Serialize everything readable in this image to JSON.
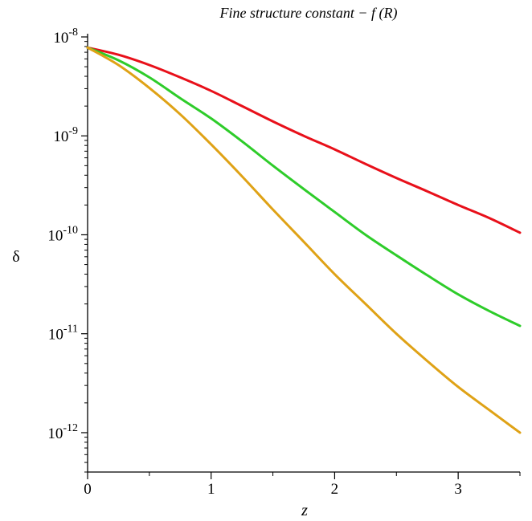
{
  "chart_data": {
    "type": "line",
    "title": "Fine structure constant  − f (R)",
    "xlabel": "z",
    "ylabel": "δ",
    "xlim": [
      0,
      3.5
    ],
    "ylim": [
      4e-13,
      1e-08
    ],
    "y_scale": "log",
    "grid": false,
    "x_ticks": [
      {
        "value": 0,
        "label": "0"
      },
      {
        "value": 1,
        "label": "1"
      },
      {
        "value": 2,
        "label": "2"
      },
      {
        "value": 3,
        "label": "3"
      }
    ],
    "y_ticks": [
      {
        "value": 1e-08,
        "base": "10",
        "exp": "-8"
      },
      {
        "value": 1e-09,
        "base": "10",
        "exp": "-9"
      },
      {
        "value": 1e-10,
        "base": "10",
        "exp": "-10"
      },
      {
        "value": 1e-11,
        "base": "10",
        "exp": "-11"
      },
      {
        "value": 1e-12,
        "base": "10",
        "exp": "-12"
      }
    ],
    "series": [
      {
        "color": "#e8101a",
        "x": [
          0,
          0.25,
          0.5,
          0.75,
          1.0,
          1.25,
          1.5,
          1.75,
          2.0,
          2.25,
          2.5,
          2.75,
          3.0,
          3.25,
          3.5
        ],
        "y": [
          7.8e-09,
          6.6e-09,
          5.2e-09,
          3.9e-09,
          2.85e-09,
          2e-09,
          1.4e-09,
          1e-09,
          7.3e-10,
          5.2e-10,
          3.75e-10,
          2.75e-10,
          2e-10,
          1.48e-10,
          1.05e-10
        ]
      },
      {
        "color": "#2ecc2a",
        "x": [
          0,
          0.25,
          0.5,
          0.75,
          1.0,
          1.25,
          1.5,
          1.75,
          2.0,
          2.25,
          2.5,
          2.75,
          3.0,
          3.25,
          3.5
        ],
        "y": [
          7.8e-09,
          5.8e-09,
          3.9e-09,
          2.4e-09,
          1.5e-09,
          8.8e-10,
          5e-10,
          2.9e-10,
          1.7e-10,
          1e-10,
          6.2e-11,
          3.9e-11,
          2.5e-11,
          1.7e-11,
          1.2e-11
        ]
      },
      {
        "color": "#dfa216",
        "x": [
          0,
          0.25,
          0.5,
          0.75,
          1.0,
          1.25,
          1.5,
          1.75,
          2.0,
          2.25,
          2.5,
          2.75,
          3.0,
          3.25,
          3.5
        ],
        "y": [
          7.8e-09,
          5.2e-09,
          3.05e-09,
          1.65e-09,
          8.2e-10,
          3.9e-10,
          1.8e-10,
          8.5e-11,
          4e-11,
          2e-11,
          1e-11,
          5.3e-12,
          2.9e-12,
          1.7e-12,
          1e-12
        ]
      }
    ]
  }
}
